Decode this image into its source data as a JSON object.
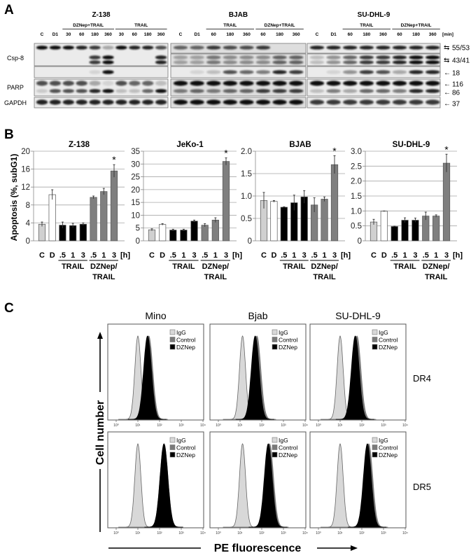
{
  "panels": {
    "a": "A",
    "b": "B",
    "c": "C"
  },
  "western_blot": {
    "unit_label": "[min]",
    "row_labels": {
      "csp8": "Csp-8",
      "parp": "PARP",
      "gapdh": "GAPDH"
    },
    "size_markers": [
      "55/53",
      "43/41",
      "18",
      "116",
      "86",
      "37"
    ],
    "blocks": [
      {
        "cell_line": "Z-138",
        "lanes": [
          "C",
          "D1",
          "30",
          "60",
          "180",
          "360",
          "30",
          "60",
          "180",
          "360"
        ],
        "groups": [
          {
            "label": "DZNep+TRAIL",
            "from": 2,
            "to": 5
          },
          {
            "label": "TRAIL",
            "from": 6,
            "to": 9
          }
        ],
        "bands": {
          "csp8_55_53": [
            1,
            1,
            1,
            0.9,
            0.8,
            0.3,
            1,
            0.9,
            0.9,
            0.7
          ],
          "csp8_43_41": [
            0,
            0,
            0,
            0,
            0.8,
            1,
            0,
            0,
            0,
            0.9
          ],
          "csp8_18": [
            0,
            0,
            0,
            0,
            0.1,
            1,
            0,
            0,
            0,
            0
          ],
          "parp_116": [
            0.7,
            0.7,
            0.7,
            0.7,
            0.3,
            0.1,
            0.7,
            0.6,
            0.6,
            0.2
          ],
          "parp_86": [
            0.15,
            0.7,
            0.7,
            0.7,
            0.9,
            1,
            0.2,
            0.2,
            0.6,
            1
          ],
          "gapdh_37": [
            0.9,
            0.9,
            0.9,
            0.9,
            0.9,
            0.9,
            0.9,
            0.9,
            0.9,
            0.9
          ]
        }
      },
      {
        "cell_line": "BJAB",
        "lanes": [
          "C",
          "D1",
          "60",
          "180",
          "360",
          "60",
          "180",
          "360"
        ],
        "groups": [
          {
            "label": "TRAIL",
            "from": 2,
            "to": 4
          },
          {
            "label": "DZNep+TRAIL",
            "from": 5,
            "to": 7
          }
        ],
        "bands": {
          "csp8_55_53": [
            0.6,
            0.6,
            0.8,
            0.7,
            0.7,
            0.8,
            0,
            0
          ],
          "csp8_43_41": [
            0.3,
            0.3,
            0.5,
            0.4,
            0.4,
            0.4,
            0.6,
            0.6
          ],
          "csp8_18": [
            0,
            0.1,
            0.2,
            0.7,
            0.6,
            0.5,
            0.9,
            0.8
          ],
          "parp_116": [
            1,
            1,
            1,
            1,
            1,
            1,
            1,
            1
          ],
          "parp_86": [
            0.5,
            0.6,
            0.5,
            0.6,
            0.6,
            0.8,
            0.8,
            0.8
          ],
          "gapdh_37": [
            1,
            1,
            1,
            1,
            1,
            1,
            1,
            1
          ]
        }
      },
      {
        "cell_line": "SU-DHL-9",
        "lanes": [
          "C",
          "D1",
          "60",
          "180",
          "360",
          "60",
          "180",
          "360"
        ],
        "groups": [
          {
            "label": "TRAIL",
            "from": 2,
            "to": 4
          },
          {
            "label": "DZNep+TRAIL",
            "from": 5,
            "to": 7
          }
        ],
        "bands": {
          "csp8_55_53": [
            0.9,
            0.9,
            0.9,
            0.9,
            0.9,
            0.9,
            0.9,
            0.9
          ],
          "csp8_43_41": [
            0.2,
            0.4,
            0.6,
            0.8,
            0.8,
            0.9,
            1,
            1
          ],
          "csp8_18": [
            0,
            0.1,
            0.4,
            0.8,
            0.7,
            0.3,
            0.9,
            0.9
          ],
          "parp_116": [
            1,
            1,
            1,
            1,
            1,
            1,
            1,
            1
          ],
          "parp_86": [
            0.2,
            0.5,
            0.3,
            0.6,
            0.6,
            0.5,
            0.9,
            0.9
          ],
          "gapdh_37": [
            0.8,
            0.8,
            0.8,
            0.8,
            0.8,
            0.8,
            0.8,
            0.8
          ]
        }
      }
    ]
  },
  "apoptosis_ylabel": "Apoptosis (%, subG1)",
  "chart_data": [
    {
      "type": "bar",
      "title": "Z-138",
      "xunit": "[h]",
      "categories": [
        "C",
        "D",
        ".5",
        "1",
        "3",
        ".5",
        "1",
        "3"
      ],
      "group_labels": [
        [
          "TRAIL"
        ],
        [
          "DZNep/",
          "TRAIL"
        ]
      ],
      "values": [
        3.7,
        10.3,
        3.5,
        3.4,
        3.7,
        9.7,
        11.0,
        15.6
      ],
      "errors": [
        0.5,
        1.1,
        0.7,
        0.5,
        0.3,
        0.3,
        0.7,
        1.4
      ],
      "significant": [
        false,
        false,
        false,
        false,
        false,
        false,
        false,
        true
      ],
      "ylim": [
        0,
        20
      ],
      "yticks": [
        0,
        4,
        8,
        12,
        16,
        20
      ],
      "ytick_labels": [
        "0",
        "4",
        "8",
        "12",
        "16",
        "20"
      ],
      "grid": true
    },
    {
      "type": "bar",
      "title": "JeKo-1",
      "xunit": "[h]",
      "categories": [
        "C",
        "D",
        ".5",
        "1",
        "3",
        ".5",
        "1",
        "3"
      ],
      "group_labels": [
        [
          "TRAIL"
        ],
        [
          "DZNep/",
          "TRAIL"
        ]
      ],
      "values": [
        4.3,
        6.4,
        4.2,
        4.2,
        7.7,
        6.1,
        8.1,
        31.0
      ],
      "errors": [
        0.4,
        0.3,
        0.3,
        0.3,
        0.4,
        0.6,
        0.9,
        1.4
      ],
      "significant": [
        false,
        false,
        false,
        false,
        false,
        false,
        false,
        true
      ],
      "ylim": [
        0,
        35
      ],
      "yticks": [
        0,
        5,
        10,
        15,
        20,
        25,
        30,
        35
      ],
      "ytick_labels": [
        "0",
        "5",
        "10",
        "15",
        "20",
        "25",
        "30",
        "35"
      ],
      "grid": true
    },
    {
      "type": "bar",
      "title": "BJAB",
      "xunit": "[h]",
      "categories": [
        "C",
        "D",
        ".5",
        "1",
        "3",
        ".5",
        "1",
        "3"
      ],
      "group_labels": [
        [
          "TRAIL"
        ],
        [
          "DZNep/",
          "TRAIL"
        ]
      ],
      "values": [
        0.9,
        0.88,
        0.75,
        0.85,
        0.98,
        0.8,
        0.93,
        1.7
      ],
      "errors": [
        0.18,
        0.02,
        0.01,
        0.17,
        0.14,
        0.16,
        0.05,
        0.2
      ],
      "significant": [
        false,
        false,
        false,
        false,
        false,
        false,
        false,
        true
      ],
      "ylim": [
        0,
        2.0
      ],
      "yticks": [
        0,
        0.5,
        1.0,
        1.5,
        2.0
      ],
      "ytick_labels": [
        "0",
        "0.5",
        "1.0",
        "1.5",
        "2.0"
      ],
      "grid": true
    },
    {
      "type": "bar",
      "title": "SU-DHL-9",
      "xunit": "[h]",
      "categories": [
        "C",
        "D",
        ".5",
        "1",
        "3",
        ".5",
        "1",
        "3"
      ],
      "group_labels": [
        [
          "TRAIL"
        ],
        [
          "DZNep/",
          "TRAIL"
        ]
      ],
      "values": [
        0.63,
        0.99,
        0.48,
        0.69,
        0.69,
        0.83,
        0.83,
        2.6
      ],
      "errors": [
        0.09,
        0.01,
        0.01,
        0.08,
        0.07,
        0.13,
        0.04,
        0.3
      ],
      "significant": [
        false,
        false,
        false,
        false,
        false,
        false,
        false,
        true
      ],
      "ylim": [
        0,
        3.0
      ],
      "yticks": [
        0,
        0.5,
        1.0,
        1.5,
        2.0,
        2.5,
        3.0
      ],
      "ytick_labels": [
        "0",
        "0.5",
        "1.0",
        "1.5",
        "2.0",
        "2.5",
        "3.0"
      ],
      "grid": true
    },
    {
      "type": "histogram",
      "xscale": "log",
      "xlim": [
        1,
        10000
      ],
      "xtick_labels": [
        "10⁰",
        "10¹",
        "10²",
        "10³",
        "10⁴"
      ],
      "xlabel": "PE fluorescence",
      "ylabel": "Cell number",
      "columns": [
        "Mino",
        "Bjab",
        "SU-DHL-9"
      ],
      "rows": [
        "DR4",
        "DR5"
      ],
      "legend": [
        "IgG",
        "Control",
        "DZNep"
      ],
      "legend_placement": "top-right",
      "peak_fluorescence": {
        "DR4": [
          {
            "IgG": 10,
            "Control": 32,
            "DZNep": 28
          },
          {
            "IgG": 13,
            "Control": 60,
            "DZNep": 50
          },
          {
            "IgG": 10,
            "Control": 60,
            "DZNep": 50
          }
        ],
        "DR5": [
          {
            "IgG": 10,
            "Control": 160,
            "DZNep": 160
          },
          {
            "IgG": 13,
            "Control": 230,
            "DZNep": 200
          },
          {
            "IgG": 10,
            "Control": 210,
            "DZNep": 180
          }
        ]
      }
    }
  ],
  "colors": {
    "control_bar": "#d0d0d0",
    "dznep_bar": "#ffffff",
    "trail_bar": "#000000",
    "dznep_trail_bar": "#7f7f7f",
    "igg_hist": "#d8d8d8",
    "control_hist": "#7a7a7a",
    "dznep_hist": "#000000"
  }
}
